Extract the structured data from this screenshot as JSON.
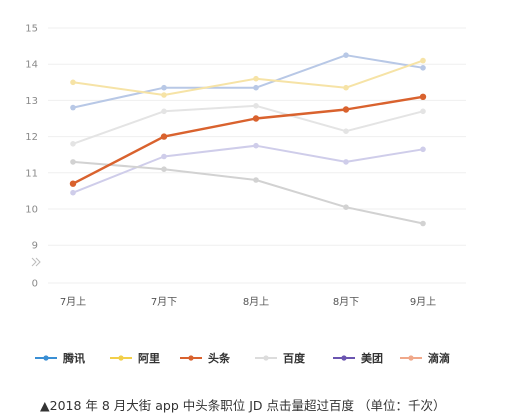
{
  "chart_data": {
    "type": "line",
    "categories": [
      "7月上",
      "7月下",
      "8月上",
      "8月下",
      "9月上"
    ],
    "y_ticks": [
      "15",
      "14",
      "13",
      "12",
      "11",
      "10",
      "9",
      "0"
    ],
    "ylim": [
      9,
      15
    ],
    "axis_break": true,
    "grid": true,
    "legend_position": "bottom",
    "series": [
      {
        "name": "腾讯",
        "color": "#b8c8e6",
        "legend_color": "#3a8fd4",
        "values": [
          12.8,
          13.35,
          13.35,
          14.25,
          13.9
        ]
      },
      {
        "name": "阿里",
        "color": "#f6e3a6",
        "legend_color": "#f2cf4a",
        "values": [
          13.5,
          13.15,
          13.6,
          13.35,
          14.1
        ]
      },
      {
        "name": "头条",
        "color": "#d9622e",
        "legend_color": "#d9622e",
        "values": [
          10.7,
          12.0,
          12.5,
          12.75,
          13.1
        ]
      },
      {
        "name": "百度",
        "color": "#e4e4e4",
        "legend_color": "#dcdcdc",
        "values": [
          11.8,
          12.7,
          12.85,
          12.15,
          12.7
        ]
      },
      {
        "name": "美团",
        "color": "#cfcdea",
        "legend_color": "#6b55b0",
        "values": [
          10.45,
          11.45,
          11.75,
          11.3,
          11.65
        ]
      },
      {
        "name": "滴滴",
        "color": "#d2d2d2",
        "legend_color": "#f0a88a",
        "values": [
          11.3,
          11.1,
          10.8,
          10.05,
          9.6
        ]
      }
    ]
  },
  "caption": "▲2018 年 8 月大街 app 中头条职位 JD 点击量超过百度 （单位：千次）"
}
